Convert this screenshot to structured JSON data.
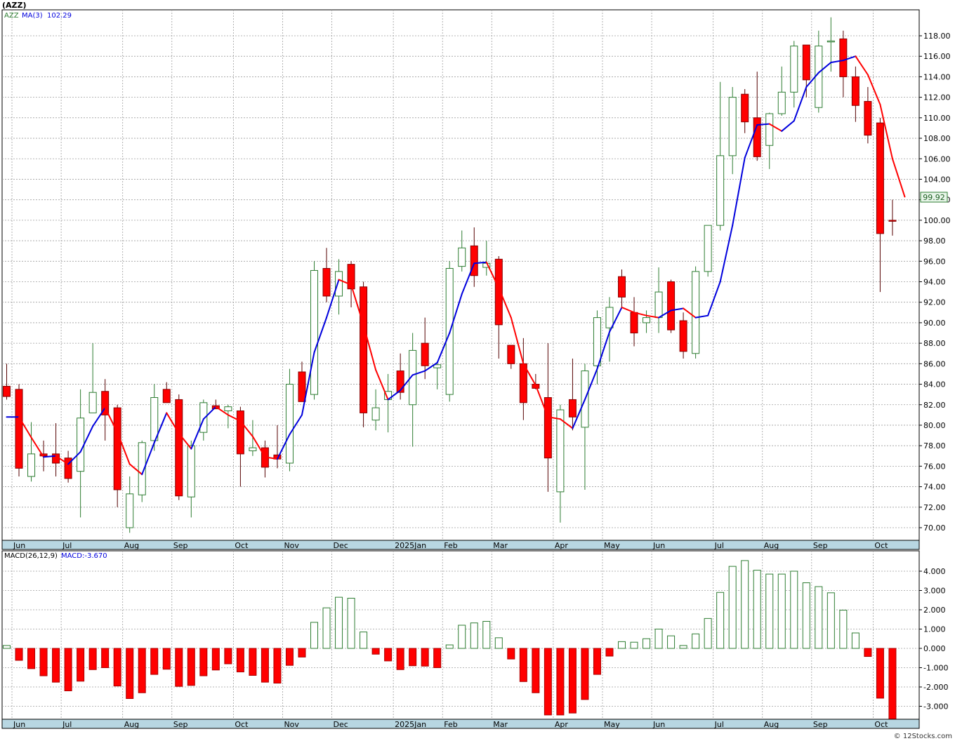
{
  "symbol_header": "(AZZ)",
  "watermark": "© 12Stocks.com",
  "colors": {
    "up": "#2e7d32",
    "down": "#ff0000",
    "ma_up": "#0000dd",
    "ma_down": "#ff0000",
    "grid": "#9e9e9e",
    "axis_bar": "#b8d7e2"
  },
  "chart_data": [
    {
      "type": "candlestick",
      "legend": {
        "symbol": "AZZ",
        "ma_label": "MA(3)",
        "ma_value": "102.29"
      },
      "last_price_label": "99.92",
      "ylim": [
        68.5,
        120.5
      ],
      "y_ticks": [
        70,
        72,
        74,
        76,
        78,
        80,
        82,
        84,
        86,
        88,
        90,
        92,
        94,
        96,
        98,
        100,
        102,
        104,
        106,
        108,
        110,
        112,
        114,
        116,
        118
      ],
      "y_tick_labels": [
        "70.00",
        "72.00",
        "74.00",
        "76.00",
        "78.00",
        "80.00",
        "82.00",
        "84.00",
        "86.00",
        "88.00",
        "90.00",
        "92.00",
        "94.00",
        "96.00",
        "98.00",
        "100.00",
        "102.00",
        "104.00",
        "106.00",
        "108.00",
        "110.00",
        "112.00",
        "114.00",
        "116.00",
        "118.00"
      ],
      "x_labels": [
        {
          "label": "Jun",
          "index": 1
        },
        {
          "label": "Jul",
          "index": 5
        },
        {
          "label": "Aug",
          "index": 10
        },
        {
          "label": "Sep",
          "index": 14
        },
        {
          "label": "Oct",
          "index": 19
        },
        {
          "label": "Nov",
          "index": 23
        },
        {
          "label": "Dec",
          "index": 27
        },
        {
          "label": "2025Jan",
          "index": 32
        },
        {
          "label": "Feb",
          "index": 36
        },
        {
          "label": "Mar",
          "index": 40
        },
        {
          "label": "Apr",
          "index": 45
        },
        {
          "label": "May",
          "index": 49
        },
        {
          "label": "Jun",
          "index": 53
        },
        {
          "label": "Jul",
          "index": 58
        },
        {
          "label": "Aug",
          "index": 62
        },
        {
          "label": "Sep",
          "index": 66
        },
        {
          "label": "Oct",
          "index": 71
        }
      ],
      "candles": [
        [
          83.8,
          86.0,
          82.5,
          82.8
        ],
        [
          83.5,
          84.0,
          75.0,
          75.8
        ],
        [
          75.0,
          80.3,
          74.5,
          77.2
        ],
        [
          77.2,
          78.5,
          75.5,
          77.0
        ],
        [
          77.2,
          80.2,
          75.0,
          76.3
        ],
        [
          76.8,
          77.5,
          74.4,
          74.8
        ],
        [
          75.5,
          83.5,
          71.0,
          80.7
        ],
        [
          81.2,
          88.0,
          81.5,
          83.2
        ],
        [
          83.3,
          84.5,
          78.5,
          81.0
        ],
        [
          81.7,
          82.0,
          72.0,
          73.7
        ],
        [
          70.0,
          75.0,
          69.5,
          73.3
        ],
        [
          73.2,
          78.5,
          72.5,
          78.3
        ],
        [
          78.5,
          84.0,
          77.5,
          82.7
        ],
        [
          83.5,
          84.2,
          82.3,
          82.2
        ],
        [
          82.5,
          83.0,
          72.7,
          73.1
        ],
        [
          73.0,
          78.5,
          71.0,
          78.0
        ],
        [
          79.3,
          82.5,
          78.5,
          82.2
        ],
        [
          81.9,
          82.5,
          81.8,
          81.6
        ],
        [
          81.4,
          82.0,
          79.7,
          81.8
        ],
        [
          81.4,
          81.8,
          74.0,
          77.2
        ],
        [
          77.5,
          80.5,
          77.0,
          77.8
        ],
        [
          77.8,
          78.5,
          74.9,
          75.9
        ],
        [
          77.1,
          80.0,
          75.8,
          76.7
        ],
        [
          76.3,
          85.5,
          75.5,
          84.0
        ],
        [
          85.2,
          86.2,
          82.5,
          82.3
        ],
        [
          83.0,
          96.0,
          82.5,
          95.1
        ],
        [
          95.3,
          97.3,
          92.0,
          92.6
        ],
        [
          92.6,
          96.2,
          90.8,
          95.0
        ],
        [
          95.7,
          96.0,
          91.5,
          93.3
        ],
        [
          93.5,
          94.0,
          79.8,
          81.2
        ],
        [
          80.5,
          83.5,
          79.5,
          81.7
        ],
        [
          82.5,
          85.0,
          79.3,
          83.3
        ],
        [
          85.3,
          87.0,
          82.5,
          83.2
        ],
        [
          82.0,
          89.0,
          77.9,
          87.3
        ],
        [
          88.0,
          90.5,
          84.5,
          85.8
        ],
        [
          85.6,
          86.0,
          83.5,
          85.9
        ],
        [
          83.0,
          96.0,
          82.3,
          95.3
        ],
        [
          95.5,
          99.0,
          95.0,
          97.3
        ],
        [
          97.5,
          99.3,
          93.5,
          94.6
        ],
        [
          95.4,
          98.0,
          94.6,
          95.8
        ],
        [
          96.2,
          96.5,
          86.5,
          89.8
        ],
        [
          87.8,
          87.8,
          85.5,
          86.0
        ],
        [
          86.0,
          88.5,
          80.5,
          82.2
        ],
        [
          84.0,
          85.0,
          83.5,
          83.6
        ],
        [
          82.7,
          88.0,
          73.5,
          76.8
        ],
        [
          73.5,
          82.0,
          70.5,
          81.5
        ],
        [
          82.5,
          86.5,
          79.5,
          80.8
        ],
        [
          79.8,
          86.0,
          73.7,
          85.3
        ],
        [
          85.8,
          91.2,
          84.0,
          90.5
        ],
        [
          89.5,
          92.5,
          86.2,
          91.5
        ],
        [
          94.5,
          95.2,
          91.5,
          92.5
        ],
        [
          91.0,
          92.5,
          87.7,
          89.0
        ],
        [
          90.0,
          91.2,
          89.0,
          90.5
        ],
        [
          90.5,
          95.4,
          89.0,
          93.0
        ],
        [
          94.0,
          94.2,
          89.0,
          89.3
        ],
        [
          90.2,
          91.0,
          86.5,
          87.2
        ],
        [
          87.0,
          95.5,
          86.5,
          95.0
        ],
        [
          95.0,
          99.0,
          94.5,
          99.5
        ],
        [
          99.5,
          113.5,
          99.0,
          106.3
        ],
        [
          106.3,
          113.0,
          104.5,
          112.0
        ],
        [
          112.3,
          112.8,
          108.5,
          109.6
        ],
        [
          110.0,
          114.5,
          105.8,
          106.2
        ],
        [
          107.3,
          110.5,
          105.0,
          110.4
        ],
        [
          110.4,
          115.0,
          110.2,
          112.5
        ],
        [
          112.5,
          117.5,
          111.0,
          117.0
        ],
        [
          117.1,
          117.0,
          112.0,
          113.7
        ],
        [
          111.0,
          118.5,
          110.5,
          117.0
        ],
        [
          117.5,
          119.8,
          114.5,
          117.5
        ],
        [
          117.7,
          118.5,
          112.0,
          114.0
        ],
        [
          114.0,
          115.0,
          109.6,
          111.2
        ],
        [
          111.6,
          113.0,
          107.5,
          108.3
        ],
        [
          109.5,
          110.0,
          93.0,
          98.7
        ],
        [
          100.0,
          102.0,
          98.5,
          99.92
        ]
      ],
      "ma3": [
        80.8,
        80.8,
        78.8,
        76.9,
        77.0,
        76.2,
        77.4,
        79.9,
        81.7,
        79.3,
        76.2,
        75.2,
        78.3,
        81.2,
        79.2,
        77.7,
        80.6,
        81.8,
        81.0,
        80.4,
        78.9,
        76.9,
        76.7,
        79.1,
        81.0,
        87.1,
        90.5,
        94.2,
        93.7,
        89.8,
        85.4,
        82.5,
        83.4,
        84.9,
        85.3,
        86.1,
        89.0,
        92.8,
        95.8,
        95.9,
        93.4,
        90.5,
        86.0,
        83.9,
        80.8,
        80.6,
        79.7,
        82.5,
        85.5,
        89.1,
        91.5,
        91.0,
        90.7,
        90.5,
        91.2,
        91.4,
        90.5,
        90.7,
        94.0,
        99.5,
        106.1,
        109.3,
        109.4,
        108.7,
        109.7,
        113.0,
        114.4,
        115.4,
        115.6,
        116.0,
        114.2,
        111.3,
        106.0,
        102.29
      ]
    },
    {
      "type": "bar",
      "legend": {
        "label": "MACD(26,12,9)",
        "value_label": "MACD:-3.670"
      },
      "ylim": [
        -3.75,
        4.8
      ],
      "y_ticks": [
        -3,
        -2,
        -1,
        0,
        1,
        2,
        3,
        4
      ],
      "y_tick_labels": [
        "-3.000",
        "-2.000",
        "-1.000",
        "0.000",
        "1.000",
        "2.000",
        "3.000",
        "4.000"
      ],
      "values": [
        0.15,
        -0.62,
        -1.05,
        -1.42,
        -1.75,
        -2.2,
        -1.7,
        -1.1,
        -1.0,
        -1.95,
        -2.6,
        -2.3,
        -1.35,
        -1.08,
        -1.97,
        -1.92,
        -1.42,
        -1.12,
        -0.8,
        -1.22,
        -1.4,
        -1.75,
        -1.8,
        -0.88,
        -0.45,
        1.35,
        2.1,
        2.65,
        2.6,
        0.85,
        -0.3,
        -0.65,
        -1.1,
        -0.9,
        -0.92,
        -1.0,
        0.18,
        1.2,
        1.32,
        1.4,
        0.55,
        -0.55,
        -1.72,
        -2.3,
        -3.45,
        -3.45,
        -3.35,
        -2.65,
        -1.35,
        -0.4,
        0.35,
        0.32,
        0.5,
        1.0,
        0.65,
        0.15,
        0.75,
        1.55,
        2.9,
        4.25,
        4.55,
        4.05,
        3.85,
        3.85,
        4.0,
        3.4,
        3.2,
        2.88,
        1.98,
        0.8,
        -0.42,
        -2.58,
        -3.67
      ],
      "x_labels": [
        {
          "label": "Jun",
          "index": 1
        },
        {
          "label": "Jul",
          "index": 5
        },
        {
          "label": "Aug",
          "index": 10
        },
        {
          "label": "Sep",
          "index": 14
        },
        {
          "label": "Oct",
          "index": 19
        },
        {
          "label": "Nov",
          "index": 23
        },
        {
          "label": "Dec",
          "index": 27
        },
        {
          "label": "2025Jan",
          "index": 32
        },
        {
          "label": "Feb",
          "index": 36
        },
        {
          "label": "Mar",
          "index": 40
        },
        {
          "label": "Apr",
          "index": 45
        },
        {
          "label": "May",
          "index": 49
        },
        {
          "label": "Jun",
          "index": 53
        },
        {
          "label": "Jul",
          "index": 58
        },
        {
          "label": "Aug",
          "index": 62
        },
        {
          "label": "Sep",
          "index": 66
        },
        {
          "label": "Oct",
          "index": 71
        }
      ]
    }
  ]
}
